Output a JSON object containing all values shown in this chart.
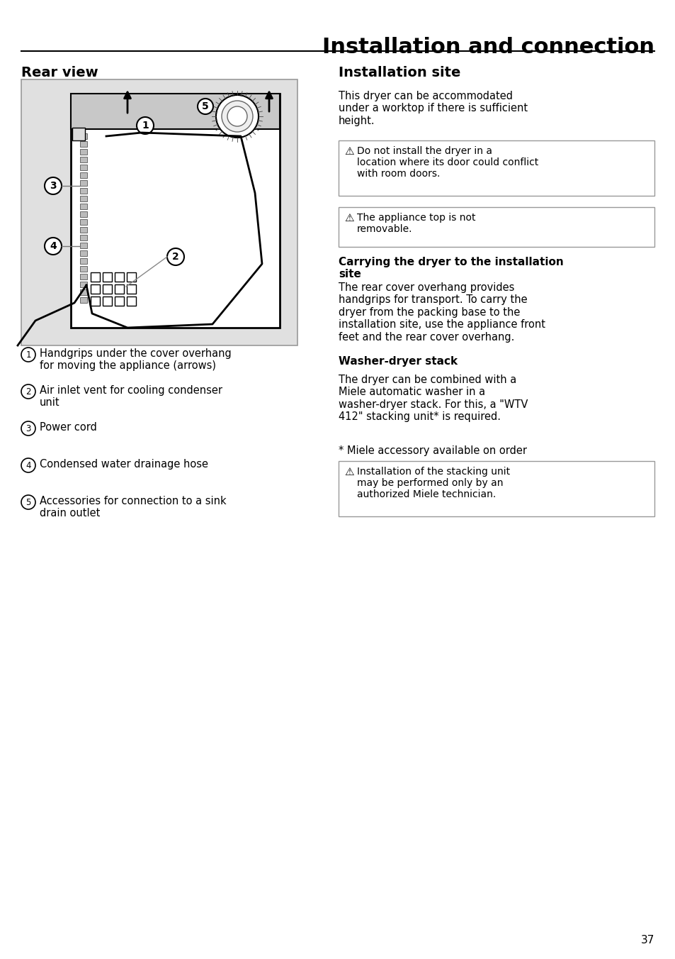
{
  "title": "Installation and connection",
  "page_number": "37",
  "background_color": "#ffffff",
  "left_section_title": "Rear view",
  "right_section_title": "Installation site",
  "right_intro": "This dryer can be accommodated\nunder a worktop if there is sufficient\nheight.",
  "warning1": "Do not install the dryer in a\nlocation where its door could conflict\nwith room doors.",
  "warning2": "The appliance top is not\nremovable.",
  "carrying_title": "Carrying the dryer to the installation\nsite",
  "carrying_text": "The rear cover overhang provides\nhandgrips for transport. To carry the\ndryer from the packing base to the\ninstallation site, use the appliance front\nfeet and the rear cover overhang.",
  "washer_title": "Washer-dryer stack",
  "washer_text": "The dryer can be combined with a\nMiele automatic washer in a\nwasher-dryer stack. For this, a \"WTV\n412\" stacking unit* is required.",
  "footnote": "* Miele accessory available on order",
  "warning3": "Installation of the stacking unit\nmay be performed only by an\nauthorized Miele technician.",
  "items": [
    {
      "num": "1",
      "text": "Handgrips under the cover overhang\nfor moving the appliance (arrows)"
    },
    {
      "num": "2",
      "text": "Air inlet vent for cooling condenser\nunit"
    },
    {
      "num": "3",
      "text": "Power cord"
    },
    {
      "num": "4",
      "text": "Condensed water drainage hose"
    },
    {
      "num": "5",
      "text": "Accessories for connection to a sink\ndrain outlet"
    }
  ]
}
